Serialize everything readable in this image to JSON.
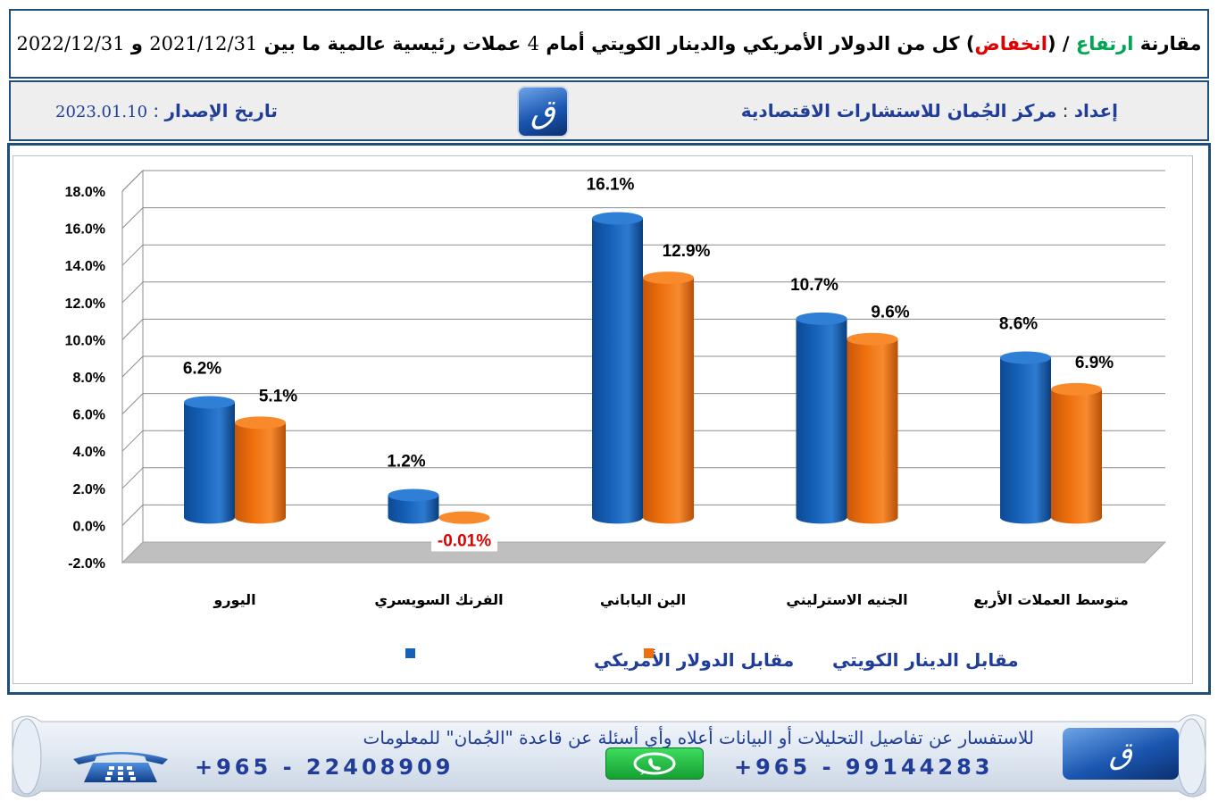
{
  "header": {
    "title_part1": "مقارنة",
    "title_rise": "ارتفاع",
    "title_sep": " / (",
    "title_fall": "انخفاض",
    "title_part2": ") كل من الدولار الأمريكي والدينار الكويتي أمام",
    "title_num": "4",
    "title_part3": "عملات رئيسية عالمية ما بين",
    "title_date1": "2021/12/31",
    "title_and": "و",
    "title_date2": "2022/12/31"
  },
  "info": {
    "prepared_label": "إعداد",
    "prepared_colon": " : ",
    "prepared_value": "مركز الجُمان للاستشارات الاقتصادية",
    "issue_label": "تاريخ الإصدار",
    "issue_colon": " : ",
    "issue_value": "2023.01.10",
    "logo_glyph": "ق"
  },
  "colors": {
    "usd": "#1560b8",
    "kwd": "#ee6f0c",
    "usd_top": "#2f7fd6",
    "kwd_top": "#f88a2c",
    "negative_label": "#e00000",
    "title_rise": "#00a651",
    "title_fall": "#e00000",
    "text_blue": "#1f3d99"
  },
  "chart_data": {
    "type": "bar",
    "categories": [
      "اليورو",
      "الفرنك السويسري",
      "الين الياباني",
      "الجنيه الاسترليني",
      "متوسط العملات الأربع"
    ],
    "series": [
      {
        "name": "مقابل الدولار الأمريكي",
        "values": [
          6.2,
          1.2,
          16.1,
          10.7,
          8.6
        ],
        "labels": [
          "6.2%",
          "1.2%",
          "16.1%",
          "10.7%",
          "8.6%"
        ]
      },
      {
        "name": "مقابل الدينار الكويتي",
        "values": [
          5.1,
          -0.01,
          12.9,
          9.6,
          6.9
        ],
        "labels": [
          "5.1%",
          "-0.01%",
          "12.9%",
          "9.6%",
          "6.9%"
        ]
      }
    ],
    "yticks": [
      "18.0%",
      "16.0%",
      "14.0%",
      "12.0%",
      "10.0%",
      "8.0%",
      "6.0%",
      "4.0%",
      "2.0%",
      "0.0%",
      "-2.0%"
    ],
    "ylim": [
      -2,
      18
    ],
    "grid": true,
    "legend_position": "bottom",
    "style": "3d-cylinder"
  },
  "footer": {
    "inquiry_text": "للاستفسار عن تفاصيل التحليلات أو البيانات أعلاه وأي أسئلة عن قاعدة \"الجُمان\" للمعلومات",
    "phone_mobile": "+965 - 99144283",
    "phone_landline": "+965 - 22408909",
    "logo_glyph": "ق"
  }
}
